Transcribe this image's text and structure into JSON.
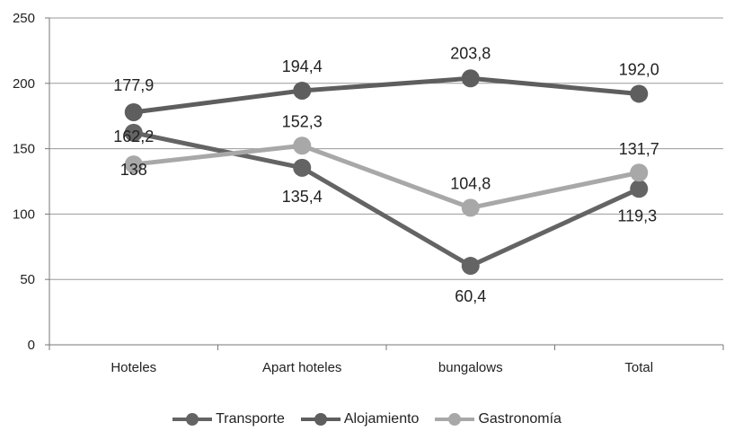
{
  "chart_data": {
    "type": "line",
    "categories": [
      "Hoteles",
      "Apart hoteles",
      "bungalows",
      "Total"
    ],
    "ylim": [
      0,
      250
    ],
    "yticks": [
      "0",
      "50",
      "100",
      "150",
      "200",
      "250"
    ],
    "grid": true,
    "legend_position": "bottom",
    "series": [
      {
        "name": "Transporte",
        "color": "#646464",
        "values": [
          162.2,
          135.4,
          60.4,
          119.3
        ],
        "labels": [
          "162,2",
          "135,4",
          "60,4",
          "119,3"
        ]
      },
      {
        "name": "Alojamiento",
        "color": "#5e5e5e",
        "values": [
          177.9,
          194.4,
          203.8,
          192.0
        ],
        "labels": [
          "177,9",
          "194,4",
          "203,8",
          "192,0"
        ]
      },
      {
        "name": "Gastronomía",
        "color": "#a8a8a8",
        "values": [
          138,
          152.3,
          104.8,
          131.7
        ],
        "labels": [
          "138",
          "152,3",
          "104,8",
          "131,7"
        ]
      }
    ]
  }
}
